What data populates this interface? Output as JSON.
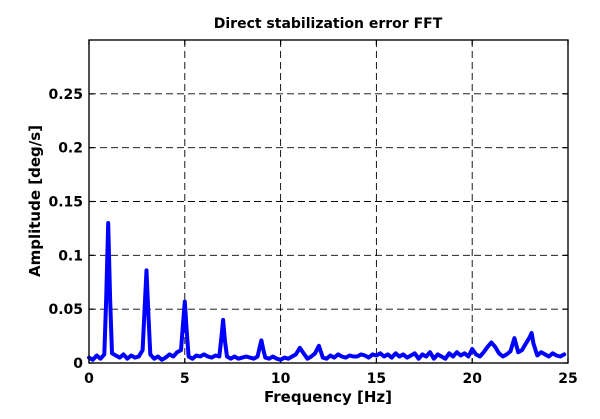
{
  "chart_data": {
    "type": "line",
    "title": "Direct stabilization error FFT",
    "xlabel": "Frequency [Hz]",
    "ylabel": "Amplitude [deg/s]",
    "xlim": [
      0,
      25
    ],
    "ylim": [
      0,
      0.3
    ],
    "xticks": [
      0,
      5,
      10,
      15,
      20,
      25
    ],
    "xtick_labels": [
      "0",
      "5",
      "10",
      "15",
      "20",
      "25"
    ],
    "yticks": [
      0,
      0.05,
      0.1,
      0.15,
      0.2,
      0.25
    ],
    "ytick_labels": [
      "0",
      "0.05",
      "0.1",
      "0.15",
      "0.2",
      "0.25"
    ],
    "grid": true,
    "series_color": "#0000ff",
    "series": [
      {
        "x": [
          0,
          0.2,
          0.4,
          0.6,
          0.8,
          0.9,
          1.0,
          1.1,
          1.2,
          1.4,
          1.6,
          1.8,
          2.0,
          2.2,
          2.4,
          2.6,
          2.8,
          2.9,
          3.0,
          3.1,
          3.2,
          3.4,
          3.6,
          3.8,
          4.0,
          4.2,
          4.4,
          4.6,
          4.8,
          4.9,
          5.0,
          5.1,
          5.2,
          5.4,
          5.6,
          5.8,
          6.0,
          6.2,
          6.4,
          6.6,
          6.8,
          6.9,
          7.0,
          7.1,
          7.2,
          7.4,
          7.6,
          7.8,
          8.0,
          8.2,
          8.4,
          8.6,
          8.8,
          8.9,
          9.0,
          9.1,
          9.2,
          9.4,
          9.6,
          9.8,
          10.0,
          10.2,
          10.4,
          10.6,
          10.8,
          11.0,
          11.2,
          11.4,
          11.6,
          11.8,
          12.0,
          12.2,
          12.4,
          12.6,
          12.8,
          13.0,
          13.2,
          13.4,
          13.6,
          13.8,
          14.0,
          14.2,
          14.4,
          14.6,
          14.8,
          15.0,
          15.2,
          15.4,
          15.6,
          15.8,
          16.0,
          16.2,
          16.4,
          16.6,
          16.8,
          17.0,
          17.2,
          17.4,
          17.6,
          17.8,
          18.0,
          18.2,
          18.4,
          18.6,
          18.8,
          19.0,
          19.2,
          19.4,
          19.6,
          19.8,
          20.0,
          20.2,
          20.4,
          20.6,
          20.8,
          21.0,
          21.2,
          21.4,
          21.6,
          21.8,
          22.0,
          22.2,
          22.4,
          22.6,
          22.8,
          23.0,
          23.1,
          23.2,
          23.4,
          23.6,
          23.8,
          24.0,
          24.2,
          24.4,
          24.6,
          24.8
        ],
        "y": [
          0.005,
          0.003,
          0.007,
          0.004,
          0.008,
          0.06,
          0.13,
          0.06,
          0.009,
          0.007,
          0.005,
          0.008,
          0.004,
          0.007,
          0.005,
          0.006,
          0.012,
          0.05,
          0.086,
          0.045,
          0.008,
          0.004,
          0.006,
          0.003,
          0.005,
          0.008,
          0.006,
          0.01,
          0.012,
          0.035,
          0.057,
          0.03,
          0.006,
          0.004,
          0.007,
          0.006,
          0.008,
          0.006,
          0.005,
          0.007,
          0.006,
          0.022,
          0.04,
          0.02,
          0.006,
          0.004,
          0.006,
          0.004,
          0.005,
          0.006,
          0.005,
          0.004,
          0.006,
          0.014,
          0.021,
          0.012,
          0.005,
          0.004,
          0.006,
          0.004,
          0.003,
          0.005,
          0.004,
          0.006,
          0.008,
          0.014,
          0.009,
          0.004,
          0.006,
          0.009,
          0.016,
          0.005,
          0.004,
          0.007,
          0.005,
          0.008,
          0.006,
          0.005,
          0.007,
          0.006,
          0.006,
          0.008,
          0.007,
          0.005,
          0.008,
          0.007,
          0.009,
          0.006,
          0.008,
          0.005,
          0.009,
          0.006,
          0.008,
          0.005,
          0.007,
          0.009,
          0.004,
          0.008,
          0.006,
          0.01,
          0.004,
          0.008,
          0.006,
          0.004,
          0.009,
          0.006,
          0.01,
          0.007,
          0.009,
          0.006,
          0.013,
          0.008,
          0.006,
          0.01,
          0.015,
          0.019,
          0.015,
          0.009,
          0.006,
          0.008,
          0.011,
          0.023,
          0.01,
          0.012,
          0.018,
          0.024,
          0.028,
          0.018,
          0.007,
          0.01,
          0.008,
          0.006,
          0.009,
          0.007,
          0.006,
          0.008
        ]
      }
    ]
  }
}
